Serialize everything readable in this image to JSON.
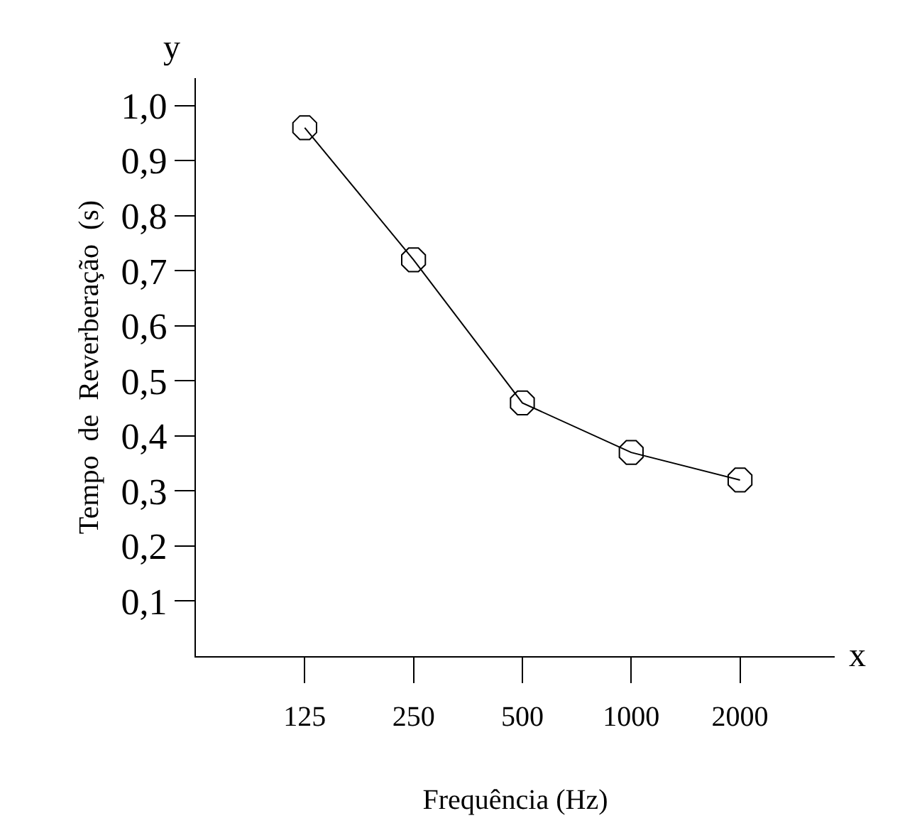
{
  "chart_data": {
    "type": "line",
    "xlabel": "Frequência (Hz)",
    "ylabel": "Tempo  de  Reverberação  (s)",
    "categories": [
      "125",
      "250",
      "500",
      "1000",
      "2000"
    ],
    "series": [
      {
        "color": "#000000",
        "values": [
          0.96,
          0.72,
          0.46,
          0.37,
          0.32
        ]
      }
    ],
    "ylim": [
      0,
      1.05
    ],
    "yticks": [
      {
        "value": 0.1,
        "label": "0,1"
      },
      {
        "value": 0.2,
        "label": "0,2"
      },
      {
        "value": 0.3,
        "label": "0,3"
      },
      {
        "value": 0.4,
        "label": "0,4"
      },
      {
        "value": 0.5,
        "label": "0,5"
      },
      {
        "value": 0.6,
        "label": "0,6"
      },
      {
        "value": 0.7,
        "label": "0,7"
      },
      {
        "value": 0.8,
        "label": "0,8"
      },
      {
        "value": 0.9,
        "label": "0,9"
      },
      {
        "value": 1.0,
        "label": "1,0"
      }
    ],
    "annotations": [
      "y",
      "x"
    ],
    "marker": "circle",
    "line_style": "solid",
    "grid": false
  }
}
